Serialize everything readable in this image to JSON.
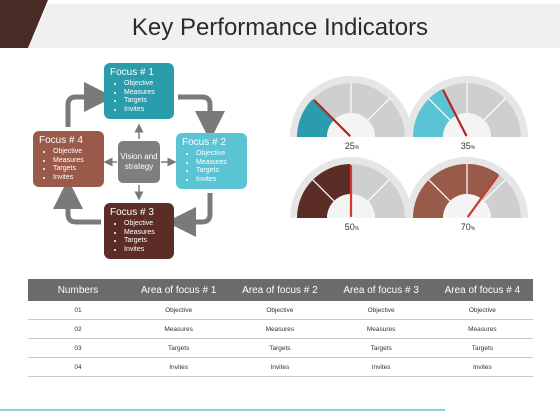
{
  "title": "Key Performance Indicators",
  "colors": {
    "teal_dark": "#2a9cac",
    "teal_light": "#5ac4d4",
    "brown_dark": "#5c2d26",
    "brown_mid": "#9a5a4a",
    "gray_arrow": "#7a7a7a",
    "header_dark": "#4a2a25"
  },
  "cycle": {
    "center": "Vision and strategy",
    "boxes": [
      {
        "title": "Focus # 1",
        "items": [
          "Objective",
          "Measures",
          "Targets",
          "Invites"
        ]
      },
      {
        "title": "Focus # 2",
        "items": [
          "Objective",
          "Measures",
          "Targets",
          "Invites"
        ]
      },
      {
        "title": "Focus # 3",
        "items": [
          "Objective",
          "Measures",
          "Targets",
          "Invites"
        ]
      },
      {
        "title": "Focus # 4",
        "items": [
          "Objective",
          "Measures",
          "Targets",
          "Invites"
        ]
      }
    ]
  },
  "gauges": [
    {
      "label": "25",
      "unit": "%",
      "value": 25
    },
    {
      "label": "35",
      "unit": "%",
      "value": 35
    },
    {
      "label": "50",
      "unit": "%",
      "value": 50
    },
    {
      "label": "70",
      "unit": "%",
      "value": 70
    }
  ],
  "table": {
    "headers": [
      "Numbers",
      "Area of focus # 1",
      "Area of focus # 2",
      "Area of focus # 3",
      "Area of focus # 4"
    ],
    "rows": [
      [
        "01",
        "Objective",
        "Objective",
        "Objective",
        "Objective"
      ],
      [
        "02",
        "Measures",
        "Measures",
        "Measures",
        "Measures"
      ],
      [
        "03",
        "Targets",
        "Targets",
        "Targets",
        "Targets"
      ],
      [
        "04",
        "Invites",
        "Invites",
        "Invites",
        "Invites"
      ]
    ]
  }
}
